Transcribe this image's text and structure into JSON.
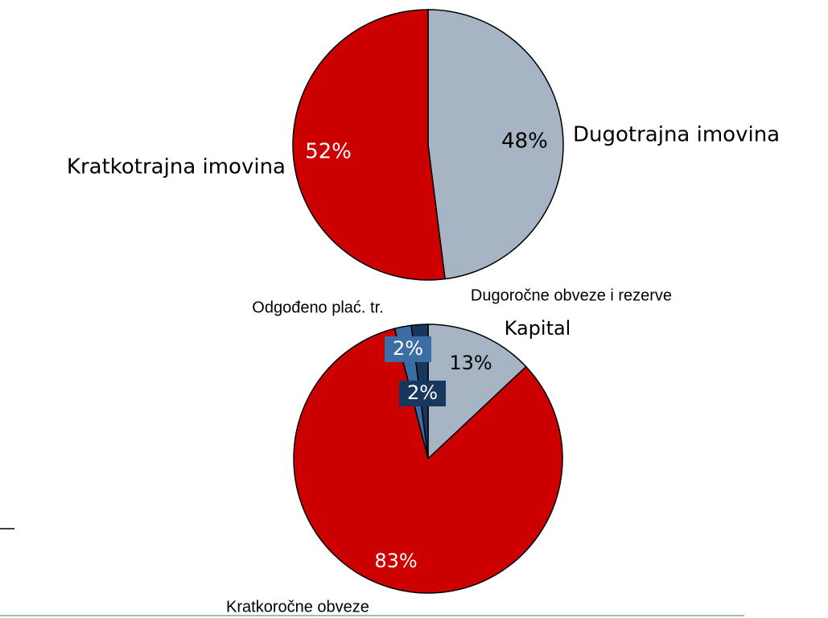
{
  "chart_data": [
    {
      "type": "pie",
      "categories": [
        "Dugotrajna imovina",
        "Kratkotrajna imovina"
      ],
      "values": [
        48,
        52
      ],
      "value_labels": [
        "48%",
        "52%"
      ],
      "colors": [
        "#a6b4c3",
        "#cc0000"
      ]
    },
    {
      "type": "pie",
      "categories": [
        "Kapital",
        "Kratkoročne obveze",
        "Odgođeno plać. tr.",
        "Dugoročne obveze i rezerve"
      ],
      "values": [
        13,
        83,
        2,
        2
      ],
      "value_labels": [
        "13%",
        "83%",
        "2%",
        "2%"
      ],
      "colors": [
        "#a6b4c3",
        "#cc0000",
        "#3b6ea5",
        "#17375e"
      ]
    }
  ]
}
